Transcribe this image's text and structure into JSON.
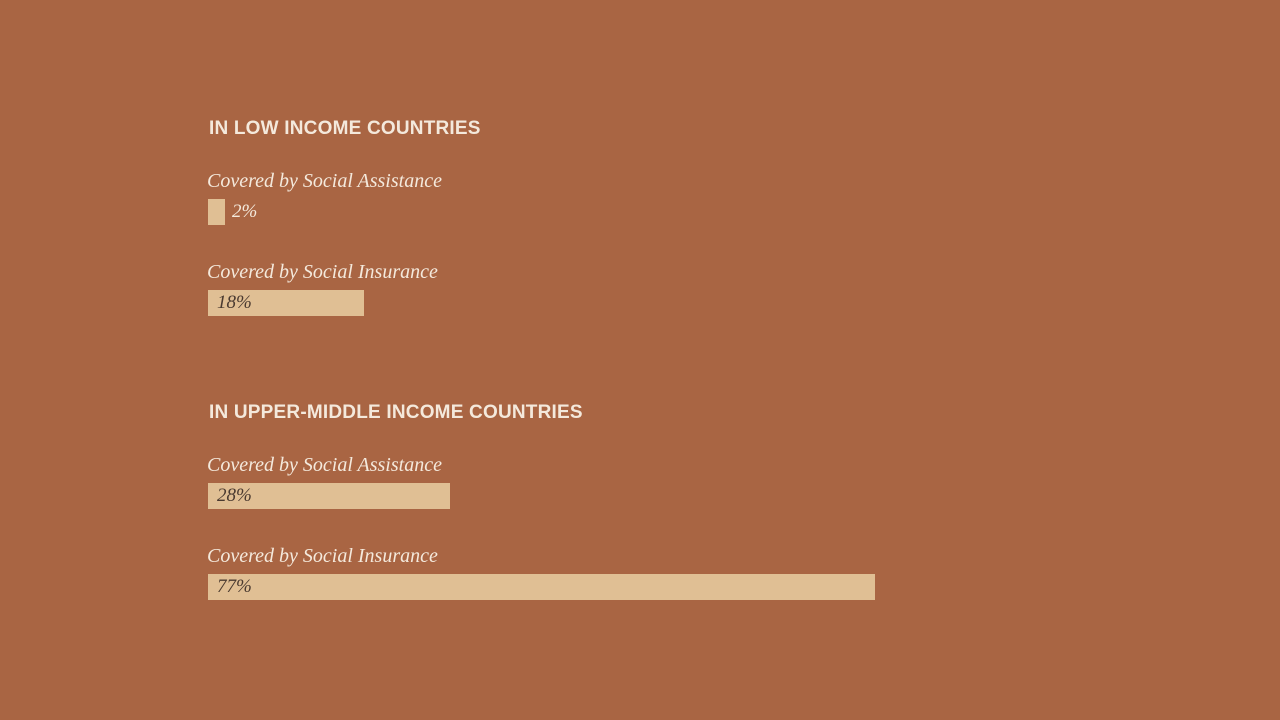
{
  "chart_data": [
    {
      "type": "bar",
      "orientation": "horizontal",
      "title": "IN LOW INCOME COUNTRIES",
      "categories": [
        "Covered by Social Assistance",
        "Covered by Social Insurance"
      ],
      "values": [
        2,
        18
      ],
      "value_labels": [
        "2%",
        "18%"
      ],
      "unit": "%",
      "xlim": [
        0,
        100
      ],
      "grid": false
    },
    {
      "type": "bar",
      "orientation": "horizontal",
      "title": "IN UPPER-MIDDLE INCOME COUNTRIES",
      "categories": [
        "Covered by Social Assistance",
        "Covered by Social Insurance"
      ],
      "values": [
        28,
        77
      ],
      "value_labels": [
        "28%",
        "77%"
      ],
      "unit": "%",
      "xlim": [
        0,
        100
      ],
      "grid": false
    }
  ],
  "colors": {
    "background": "#a96543",
    "bar": "#e0bf94",
    "text_light": "#f4e9dc",
    "text_dark": "#4a3a30"
  }
}
